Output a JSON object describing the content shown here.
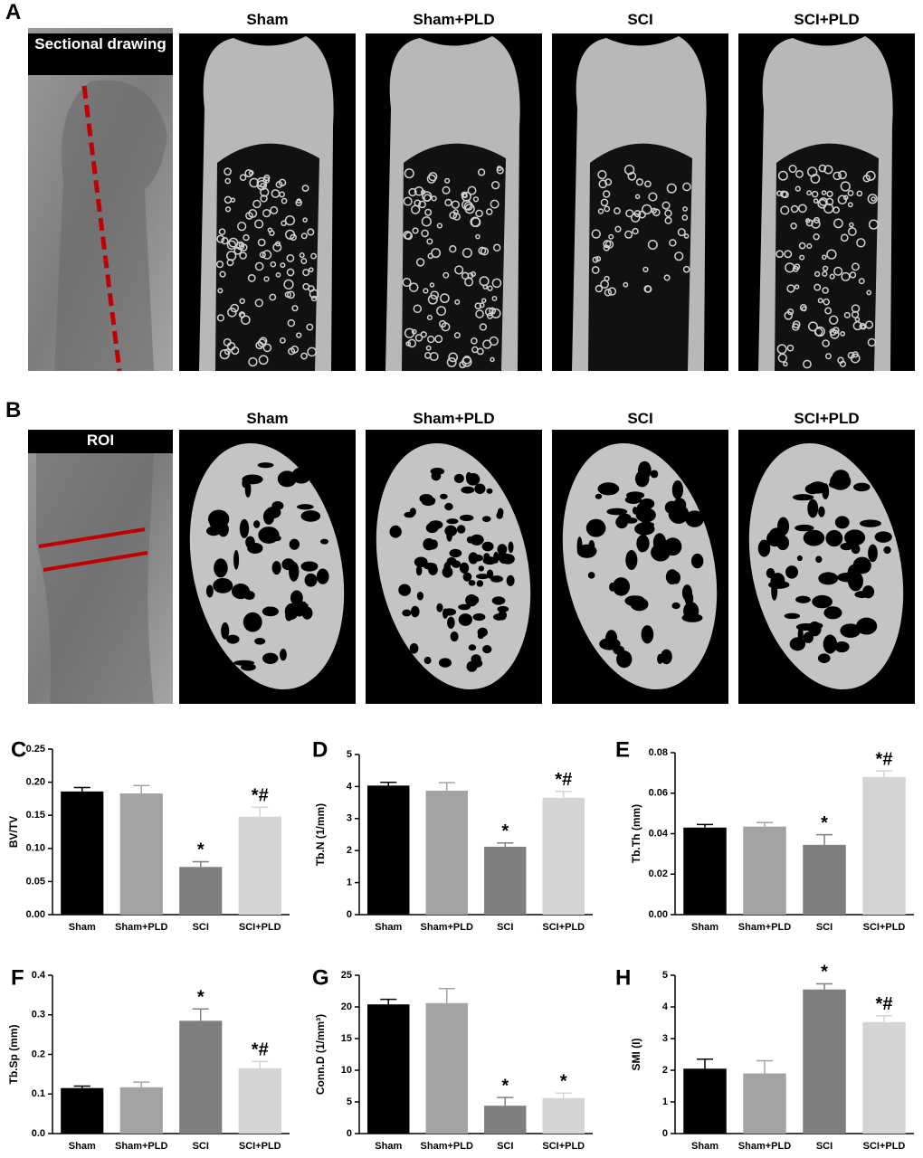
{
  "figure": {
    "panel_a": {
      "label": "A",
      "xray_title": "Sectional drawing",
      "groups": [
        "Sham",
        "Sham+PLD",
        "SCI",
        "SCI+PLD"
      ]
    },
    "panel_b": {
      "label": "B",
      "xray_title": "ROI",
      "groups": [
        "Sham",
        "Sham+PLD",
        "SCI",
        "SCI+PLD"
      ]
    }
  },
  "chart_data": [
    {
      "type": "bar",
      "label": "C",
      "ylabel": "BV/TV",
      "categories": [
        "Sham",
        "Sham+PLD",
        "SCI",
        "SCI+PLD"
      ],
      "values": [
        0.186,
        0.183,
        0.072,
        0.148
      ],
      "errors": [
        0.006,
        0.012,
        0.008,
        0.014
      ],
      "annotations": [
        null,
        null,
        "*",
        "*#"
      ],
      "colors": [
        "#000000",
        "#a3a3a6",
        "#7f7f7f",
        "#d4d4d4"
      ],
      "ylim": [
        0,
        0.25
      ],
      "yticks": [
        {
          "value": 0,
          "label": "0.00"
        },
        0.05,
        {
          "value": 0.1,
          "label": "0.10"
        },
        0.15,
        {
          "value": 0.2,
          "label": "0.20"
        },
        0.25
      ]
    },
    {
      "type": "bar",
      "label": "D",
      "ylabel": "Tb.N (1/mm)",
      "categories": [
        "Sham",
        "Sham+PLD",
        "SCI",
        "SCI+PLD"
      ],
      "values": [
        4.03,
        3.87,
        2.12,
        3.65
      ],
      "errors": [
        0.1,
        0.25,
        0.12,
        0.2
      ],
      "annotations": [
        null,
        null,
        "*",
        "*#"
      ],
      "colors": [
        "#000000",
        "#a3a3a6",
        "#7f7f7f",
        "#d4d4d4"
      ],
      "ylim": [
        0,
        5
      ],
      "yticks": [
        0,
        1,
        2,
        3,
        4,
        5
      ]
    },
    {
      "type": "bar",
      "label": "E",
      "ylabel": "Tb.Th (mm)",
      "categories": [
        "Sham",
        "Sham+PLD",
        "SCI",
        "SCI+PLD"
      ],
      "values": [
        0.043,
        0.0435,
        0.0345,
        0.068
      ],
      "errors": [
        0.0015,
        0.002,
        0.005,
        0.003
      ],
      "annotations": [
        null,
        null,
        "*",
        "*#"
      ],
      "colors": [
        "#000000",
        "#a3a3a6",
        "#7f7f7f",
        "#d4d4d4"
      ],
      "ylim": [
        0,
        0.08
      ],
      "yticks": [
        {
          "value": 0,
          "label": "0.00"
        },
        0.02,
        0.04,
        0.06,
        0.08
      ]
    },
    {
      "type": "bar",
      "label": "F",
      "ylabel": "Tb.Sp (mm)",
      "categories": [
        "Sham",
        "Sham+PLD",
        "SCI",
        "SCI+PLD"
      ],
      "values": [
        0.115,
        0.117,
        0.285,
        0.165
      ],
      "errors": [
        0.005,
        0.013,
        0.03,
        0.017
      ],
      "annotations": [
        null,
        null,
        "*",
        "*#"
      ],
      "colors": [
        "#000000",
        "#a3a3a6",
        "#7f7f7f",
        "#d4d4d4"
      ],
      "ylim": [
        0,
        0.4
      ],
      "yticks": [
        {
          "value": 0,
          "label": "0.0"
        },
        0.1,
        0.2,
        0.3,
        0.4
      ]
    },
    {
      "type": "bar",
      "label": "G",
      "ylabel": "Conn.D (1/mm³)",
      "categories": [
        "Sham",
        "Sham+PLD",
        "SCI",
        "SCI+PLD"
      ],
      "values": [
        20.4,
        20.6,
        4.4,
        5.6
      ],
      "errors": [
        0.8,
        2.3,
        1.3,
        0.8
      ],
      "annotations": [
        null,
        null,
        "*",
        "*"
      ],
      "colors": [
        "#000000",
        "#a3a3a6",
        "#7f7f7f",
        "#d4d4d4"
      ],
      "ylim": [
        0,
        25
      ],
      "yticks": [
        0,
        5,
        10,
        15,
        20,
        25
      ]
    },
    {
      "type": "bar",
      "label": "H",
      "ylabel": "SMI (I)",
      "categories": [
        "Sham",
        "Sham+PLD",
        "SCI",
        "SCI+PLD"
      ],
      "values": [
        2.05,
        1.9,
        4.55,
        3.52
      ],
      "errors": [
        0.3,
        0.4,
        0.18,
        0.2
      ],
      "annotations": [
        null,
        null,
        "*",
        "*#"
      ],
      "colors": [
        "#000000",
        "#a3a3a6",
        "#7f7f7f",
        "#d4d4d4"
      ],
      "ylim": [
        0,
        5
      ],
      "yticks": [
        0,
        1,
        2,
        3,
        4,
        5
      ]
    }
  ]
}
